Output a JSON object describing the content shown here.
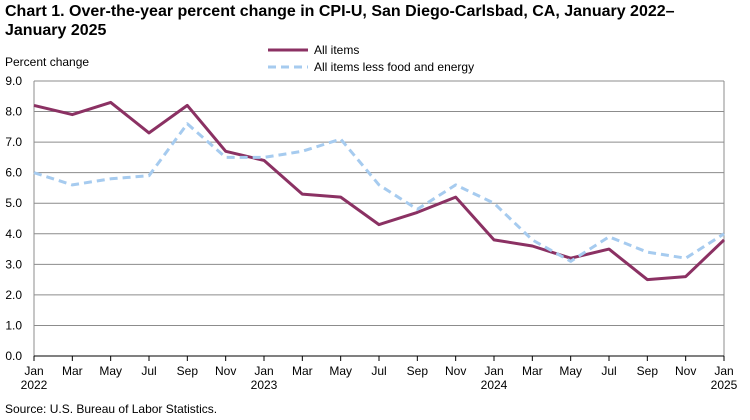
{
  "chart_data": {
    "type": "line",
    "title_line1": "Chart 1. Over-the-year percent change in CPI-U, San Diego-Carlsbad, CA, January 2022–",
    "title_line2": "January 2025",
    "ylabel": "Percent change",
    "source": "Source: U.S. Bureau of Labor Statistics.",
    "ylim": [
      0,
      9
    ],
    "yticks": [
      "0.0",
      "1.0",
      "2.0",
      "3.0",
      "4.0",
      "5.0",
      "6.0",
      "7.0",
      "8.0",
      "9.0"
    ],
    "x": [
      "Jan 2022",
      "Mar 2022",
      "May 2022",
      "Jul 2022",
      "Sep 2022",
      "Nov 2022",
      "Jan 2023",
      "Mar 2023",
      "May 2023",
      "Jul 2023",
      "Sep 2023",
      "Nov 2023",
      "Jan 2024",
      "Mar 2024",
      "May 2024",
      "Jul 2024",
      "Sep 2024",
      "Nov 2024",
      "Jan 2025"
    ],
    "xtick_month": [
      "Jan",
      "Mar",
      "May",
      "Jul",
      "Sep",
      "Nov",
      "Jan",
      "Mar",
      "May",
      "Jul",
      "Sep",
      "Nov",
      "Jan",
      "Mar",
      "May",
      "Jul",
      "Sep",
      "Nov",
      "Jan"
    ],
    "xtick_year": [
      "2022",
      "",
      "",
      "",
      "",
      "",
      "2023",
      "",
      "",
      "",
      "",
      "",
      "2024",
      "",
      "",
      "",
      "",
      "",
      "2025"
    ],
    "series": [
      {
        "name": "All items",
        "color": "#8B3163",
        "dash": "solid",
        "values": [
          8.2,
          7.9,
          8.3,
          7.3,
          8.2,
          6.7,
          6.4,
          5.3,
          5.2,
          4.3,
          4.7,
          5.2,
          3.8,
          3.6,
          3.2,
          3.5,
          2.5,
          2.6,
          3.8
        ]
      },
      {
        "name": "All items less food and energy",
        "color": "#A6CBEF",
        "dash": "dashed",
        "values": [
          6.0,
          5.6,
          5.8,
          5.9,
          7.6,
          6.5,
          6.5,
          6.7,
          7.1,
          5.6,
          4.8,
          5.6,
          5.0,
          3.8,
          3.1,
          3.9,
          3.4,
          3.2,
          4.0
        ]
      }
    ],
    "grid": true,
    "legend_position": "top-center"
  }
}
